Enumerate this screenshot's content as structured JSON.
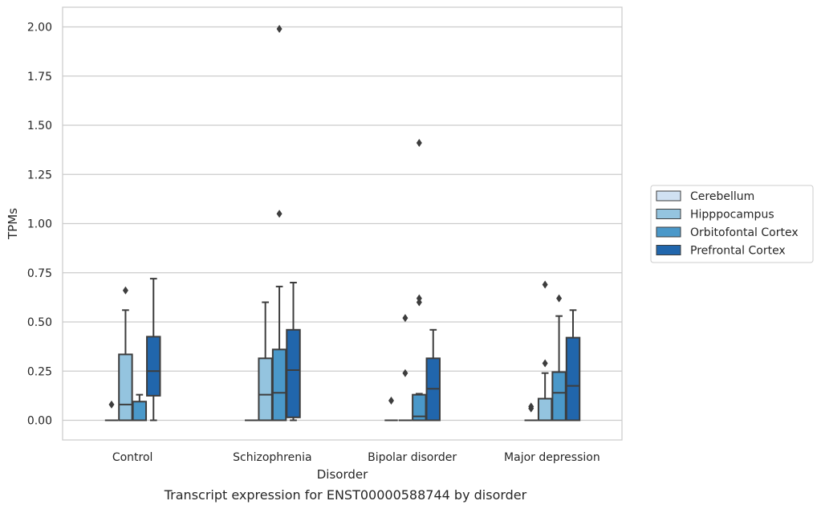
{
  "chart_data": {
    "type": "box",
    "xlabel": "Disorder",
    "ylabel": "TPMs",
    "caption": "Transcript expression for ENST00000588744 by disorder",
    "categories": [
      "Control",
      "Schizophrenia",
      "Bipolar disorder",
      "Major depression"
    ],
    "ylim": [
      -0.1,
      2.1
    ],
    "yticks": [
      0.0,
      0.25,
      0.5,
      0.75,
      1.0,
      1.25,
      1.5,
      1.75,
      2.0
    ],
    "ytick_labels": [
      "0.00",
      "0.25",
      "0.50",
      "0.75",
      "1.00",
      "1.25",
      "1.50",
      "1.75",
      "2.00"
    ],
    "grid": true,
    "legend_position": "right",
    "series": [
      {
        "name": "Cerebellum",
        "color": "#d0e1f2",
        "boxes": [
          {
            "q1": 0,
            "median": 0,
            "q3": 0,
            "whisker_low": 0,
            "whisker_high": 0,
            "outliers": [
              0.08
            ]
          },
          {
            "q1": 0,
            "median": 0,
            "q3": 0,
            "whisker_low": 0,
            "whisker_high": 0,
            "outliers": []
          },
          {
            "q1": 0,
            "median": 0,
            "q3": 0,
            "whisker_low": 0,
            "whisker_high": 0,
            "outliers": [
              0.1
            ]
          },
          {
            "q1": 0,
            "median": 0,
            "q3": 0,
            "whisker_low": 0,
            "whisker_high": 0,
            "outliers": [
              0.06,
              0.07
            ]
          }
        ]
      },
      {
        "name": "Hipppocampus",
        "color": "#94c4df",
        "boxes": [
          {
            "q1": 0,
            "median": 0.08,
            "q3": 0.335,
            "whisker_low": 0,
            "whisker_high": 0.56,
            "outliers": [
              0.66
            ]
          },
          {
            "q1": 0,
            "median": 0.13,
            "q3": 0.315,
            "whisker_low": 0,
            "whisker_high": 0.6,
            "outliers": []
          },
          {
            "q1": 0,
            "median": 0,
            "q3": 0,
            "whisker_low": 0,
            "whisker_high": 0,
            "outliers": [
              0.24,
              0.52
            ]
          },
          {
            "q1": 0,
            "median": 0,
            "q3": 0.11,
            "whisker_low": 0,
            "whisker_high": 0.24,
            "outliers": [
              0.29,
              0.69
            ]
          }
        ]
      },
      {
        "name": "Orbitofontal Cortex",
        "color": "#4a98c9",
        "boxes": [
          {
            "q1": 0,
            "median": 0,
            "q3": 0.095,
            "whisker_low": 0,
            "whisker_high": 0.13,
            "outliers": []
          },
          {
            "q1": 0,
            "median": 0.14,
            "q3": 0.36,
            "whisker_low": 0,
            "whisker_high": 0.68,
            "outliers": [
              1.05,
              1.99
            ]
          },
          {
            "q1": 0,
            "median": 0.02,
            "q3": 0.13,
            "whisker_low": 0,
            "whisker_high": 0.135,
            "outliers": [
              0.6,
              0.62,
              1.41
            ]
          },
          {
            "q1": 0,
            "median": 0.14,
            "q3": 0.245,
            "whisker_low": 0,
            "whisker_high": 0.53,
            "outliers": [
              0.62
            ]
          }
        ]
      },
      {
        "name": "Prefrontal Cortex",
        "color": "#2166ac",
        "boxes": [
          {
            "q1": 0.125,
            "median": 0.25,
            "q3": 0.425,
            "whisker_low": 0,
            "whisker_high": 0.72,
            "outliers": []
          },
          {
            "q1": 0.015,
            "median": 0.255,
            "q3": 0.46,
            "whisker_low": 0,
            "whisker_high": 0.7,
            "outliers": []
          },
          {
            "q1": 0,
            "median": 0.16,
            "q3": 0.315,
            "whisker_low": 0,
            "whisker_high": 0.46,
            "outliers": []
          },
          {
            "q1": 0,
            "median": 0.175,
            "q3": 0.42,
            "whisker_low": 0,
            "whisker_high": 0.56,
            "outliers": []
          }
        ]
      }
    ]
  }
}
